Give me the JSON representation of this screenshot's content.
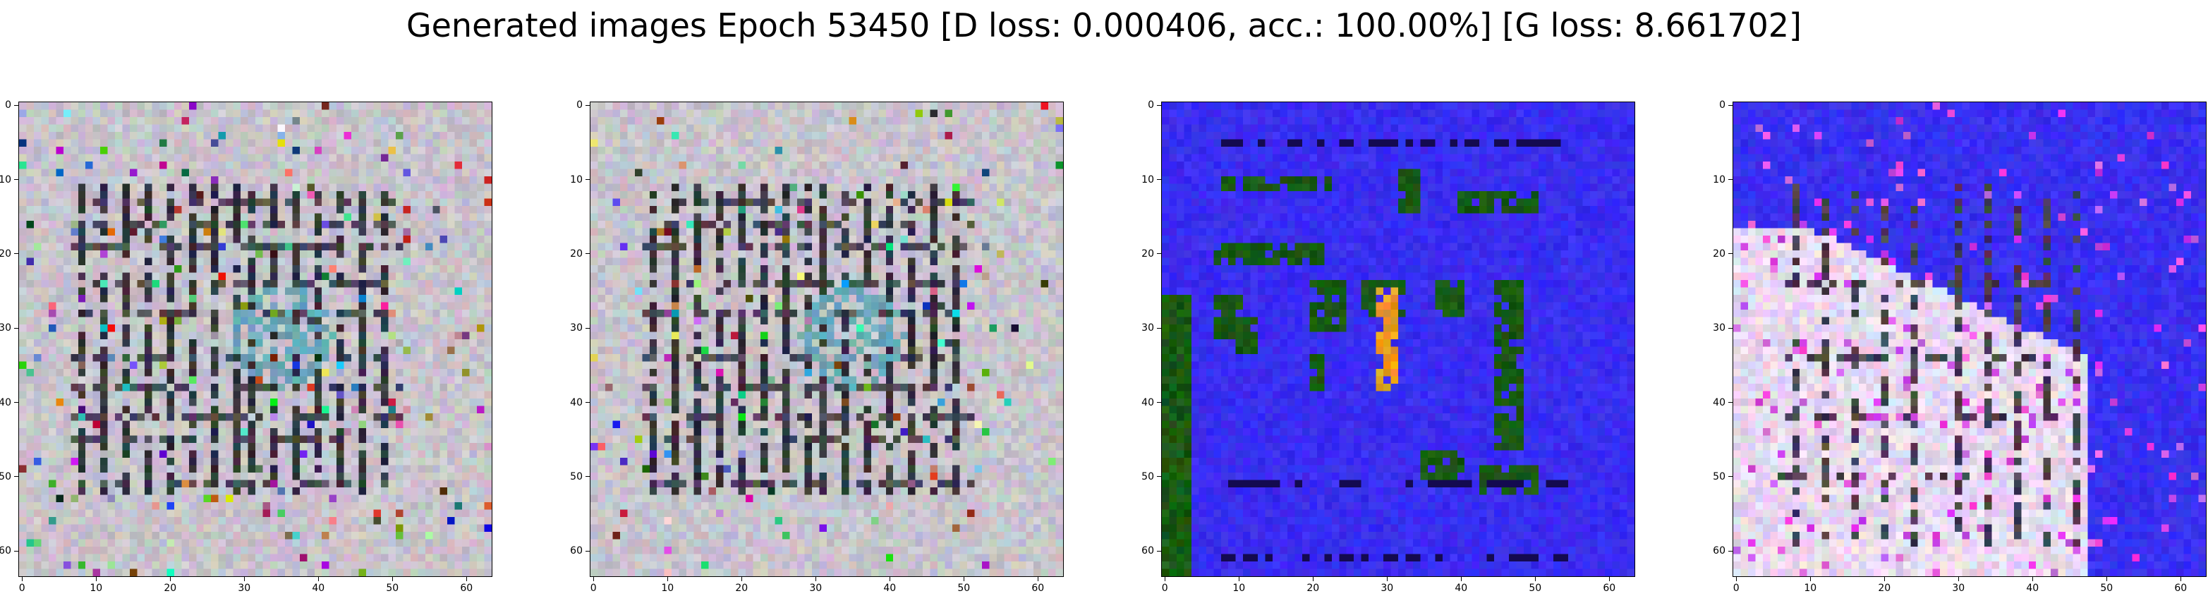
{
  "figure": {
    "title": "Generated images Epoch 53450 [D loss: 0.000406, acc.: 100.00%] [G loss: 8.661702]"
  },
  "axes": {
    "x_ticks": [
      "0",
      "10",
      "20",
      "30",
      "40",
      "50",
      "60"
    ],
    "y_ticks": [
      "0",
      "10",
      "20",
      "30",
      "40",
      "50",
      "60"
    ],
    "range": [
      -0.5,
      63.5
    ]
  },
  "panels": [
    {
      "name": "generated-image-1",
      "palette": "gray-floorplan",
      "colors": {
        "background": "#c8c4cc",
        "lines": "#1a1a22",
        "accent": "#6aa8b8"
      }
    },
    {
      "name": "generated-image-2",
      "palette": "gray-floorplan",
      "colors": {
        "background": "#c8c4cc",
        "lines": "#1a1a22",
        "accent": "#6aa8b8"
      }
    },
    {
      "name": "generated-image-3",
      "palette": "blue-green",
      "colors": {
        "background": "#3a2ef0",
        "blocks": "#1a5a14",
        "accent": "#e8a020"
      }
    },
    {
      "name": "generated-image-4",
      "palette": "blue-white",
      "colors": {
        "background": "#3a30f0",
        "overlay": "#e8d8f0",
        "lines": "#2a2030"
      }
    }
  ]
}
